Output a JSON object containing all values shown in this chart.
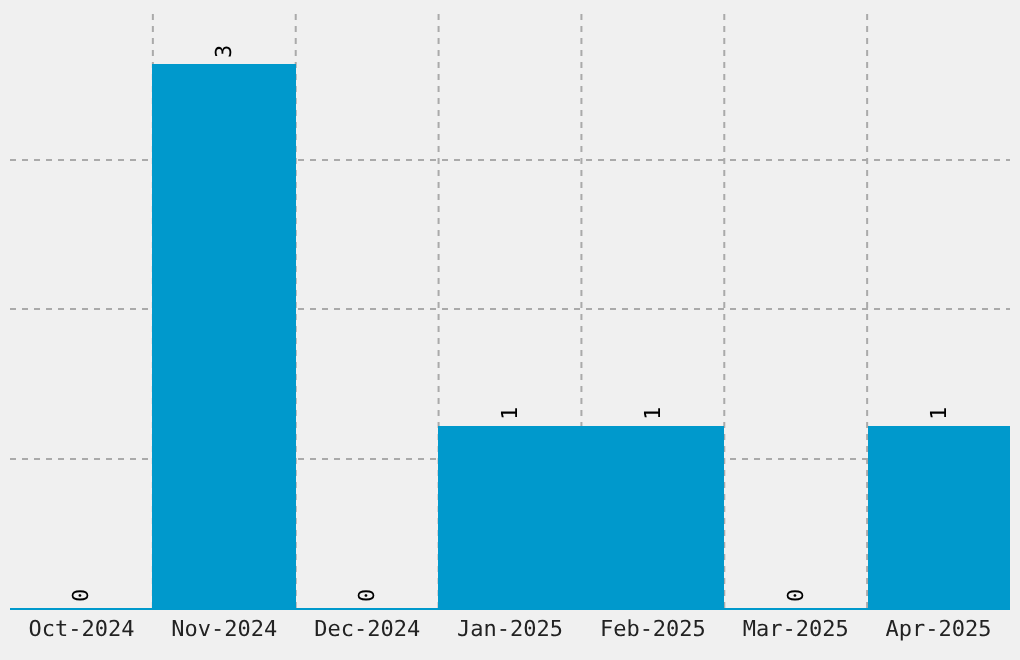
{
  "chart_data": {
    "type": "bar",
    "categories": [
      "Oct-2024",
      "Nov-2024",
      "Dec-2024",
      "Jan-2025",
      "Feb-2025",
      "Mar-2025",
      "Apr-2025"
    ],
    "values": [
      0,
      3,
      0,
      1,
      1,
      0,
      1
    ],
    "color": "#0099cc",
    "data_labels": true,
    "grid": true,
    "tick_labels": "x",
    "ylim": [
      0,
      3.3
    ],
    "yticks": [
      {
        "value": 0.825,
        "label": null
      },
      {
        "value": 1.65,
        "label": null
      },
      {
        "value": 2.475,
        "label": null
      }
    ]
  }
}
